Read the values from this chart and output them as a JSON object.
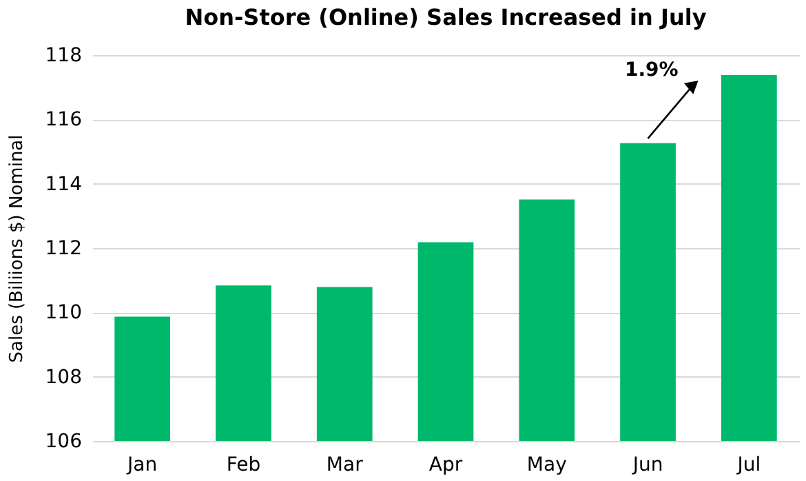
{
  "chart_data": {
    "type": "bar",
    "title": "Non-Store (Online) Sales Increased in July",
    "ylabel": "Sales (Biliions $) Nominal",
    "categories": [
      "Jan",
      "Feb",
      "Mar",
      "Apr",
      "May",
      "Jun",
      "Jul"
    ],
    "values": [
      109.87,
      110.84,
      110.79,
      112.18,
      113.51,
      115.26,
      117.38
    ],
    "color": "#00b86b",
    "ylim": [
      106,
      118
    ],
    "yticks": [
      106,
      108,
      110,
      112,
      114,
      116,
      118
    ],
    "grid": "y",
    "annotations": [
      "1.9%"
    ]
  }
}
